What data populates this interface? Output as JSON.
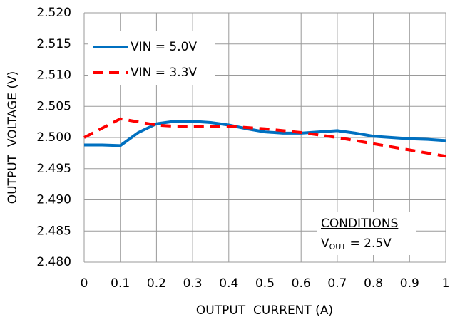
{
  "chart_data": {
    "type": "line",
    "x_label": "OUTPUT  CURRENT (A)",
    "y_label": "OUTPUT  VOLTAGE (V)",
    "x": [
      0,
      0.05,
      0.1,
      0.15,
      0.2,
      0.25,
      0.3,
      0.35,
      0.4,
      0.45,
      0.5,
      0.55,
      0.6,
      0.65,
      0.7,
      0.75,
      0.8,
      0.85,
      0.9,
      0.95,
      1
    ],
    "series": [
      {
        "name": "VIN = 5.0V",
        "color": "#0070c0",
        "style": "solid",
        "values": [
          2.4988,
          2.4988,
          2.4987,
          2.5008,
          2.5022,
          2.5026,
          2.5026,
          2.5024,
          2.502,
          2.5014,
          2.5009,
          2.5007,
          2.5007,
          2.5009,
          2.5011,
          2.5007,
          2.5002,
          2.5,
          2.4998,
          2.4997,
          2.4995
        ]
      },
      {
        "name": "VIN = 3.3V",
        "color": "#ff0000",
        "style": "dashed",
        "values": [
          2.5,
          2.5015,
          2.503,
          2.5025,
          2.502,
          2.5018,
          2.5018,
          2.5018,
          2.5018,
          2.5016,
          2.5014,
          2.5011,
          2.5008,
          2.5004,
          2.5,
          2.4995,
          2.499,
          2.4985,
          2.498,
          2.4975,
          2.497
        ]
      }
    ],
    "xlim": [
      0,
      1
    ],
    "xticks": [
      0,
      0.1,
      0.2,
      0.3,
      0.4,
      0.5,
      0.6,
      0.7,
      0.8,
      0.9,
      1
    ],
    "ylim": [
      2.48,
      2.52
    ],
    "yticks": [
      {
        "value": 2.48,
        "label": "2.480"
      },
      {
        "value": 2.485,
        "label": "2.485"
      },
      {
        "value": 2.49,
        "label": "2.490"
      },
      {
        "value": 2.495,
        "label": "2.495"
      },
      {
        "value": 2.5,
        "label": "2.500"
      },
      {
        "value": 2.505,
        "label": "2.505"
      },
      {
        "value": 2.51,
        "label": "2.510"
      },
      {
        "value": 2.515,
        "label": "2.515"
      },
      {
        "value": 2.52,
        "label": "2.520"
      }
    ],
    "grid": true,
    "legend": "top-left",
    "annotation": {
      "heading": "CONDITIONS",
      "symbol": "V",
      "subscript": "OUT",
      "text": " = 2.5V"
    }
  }
}
